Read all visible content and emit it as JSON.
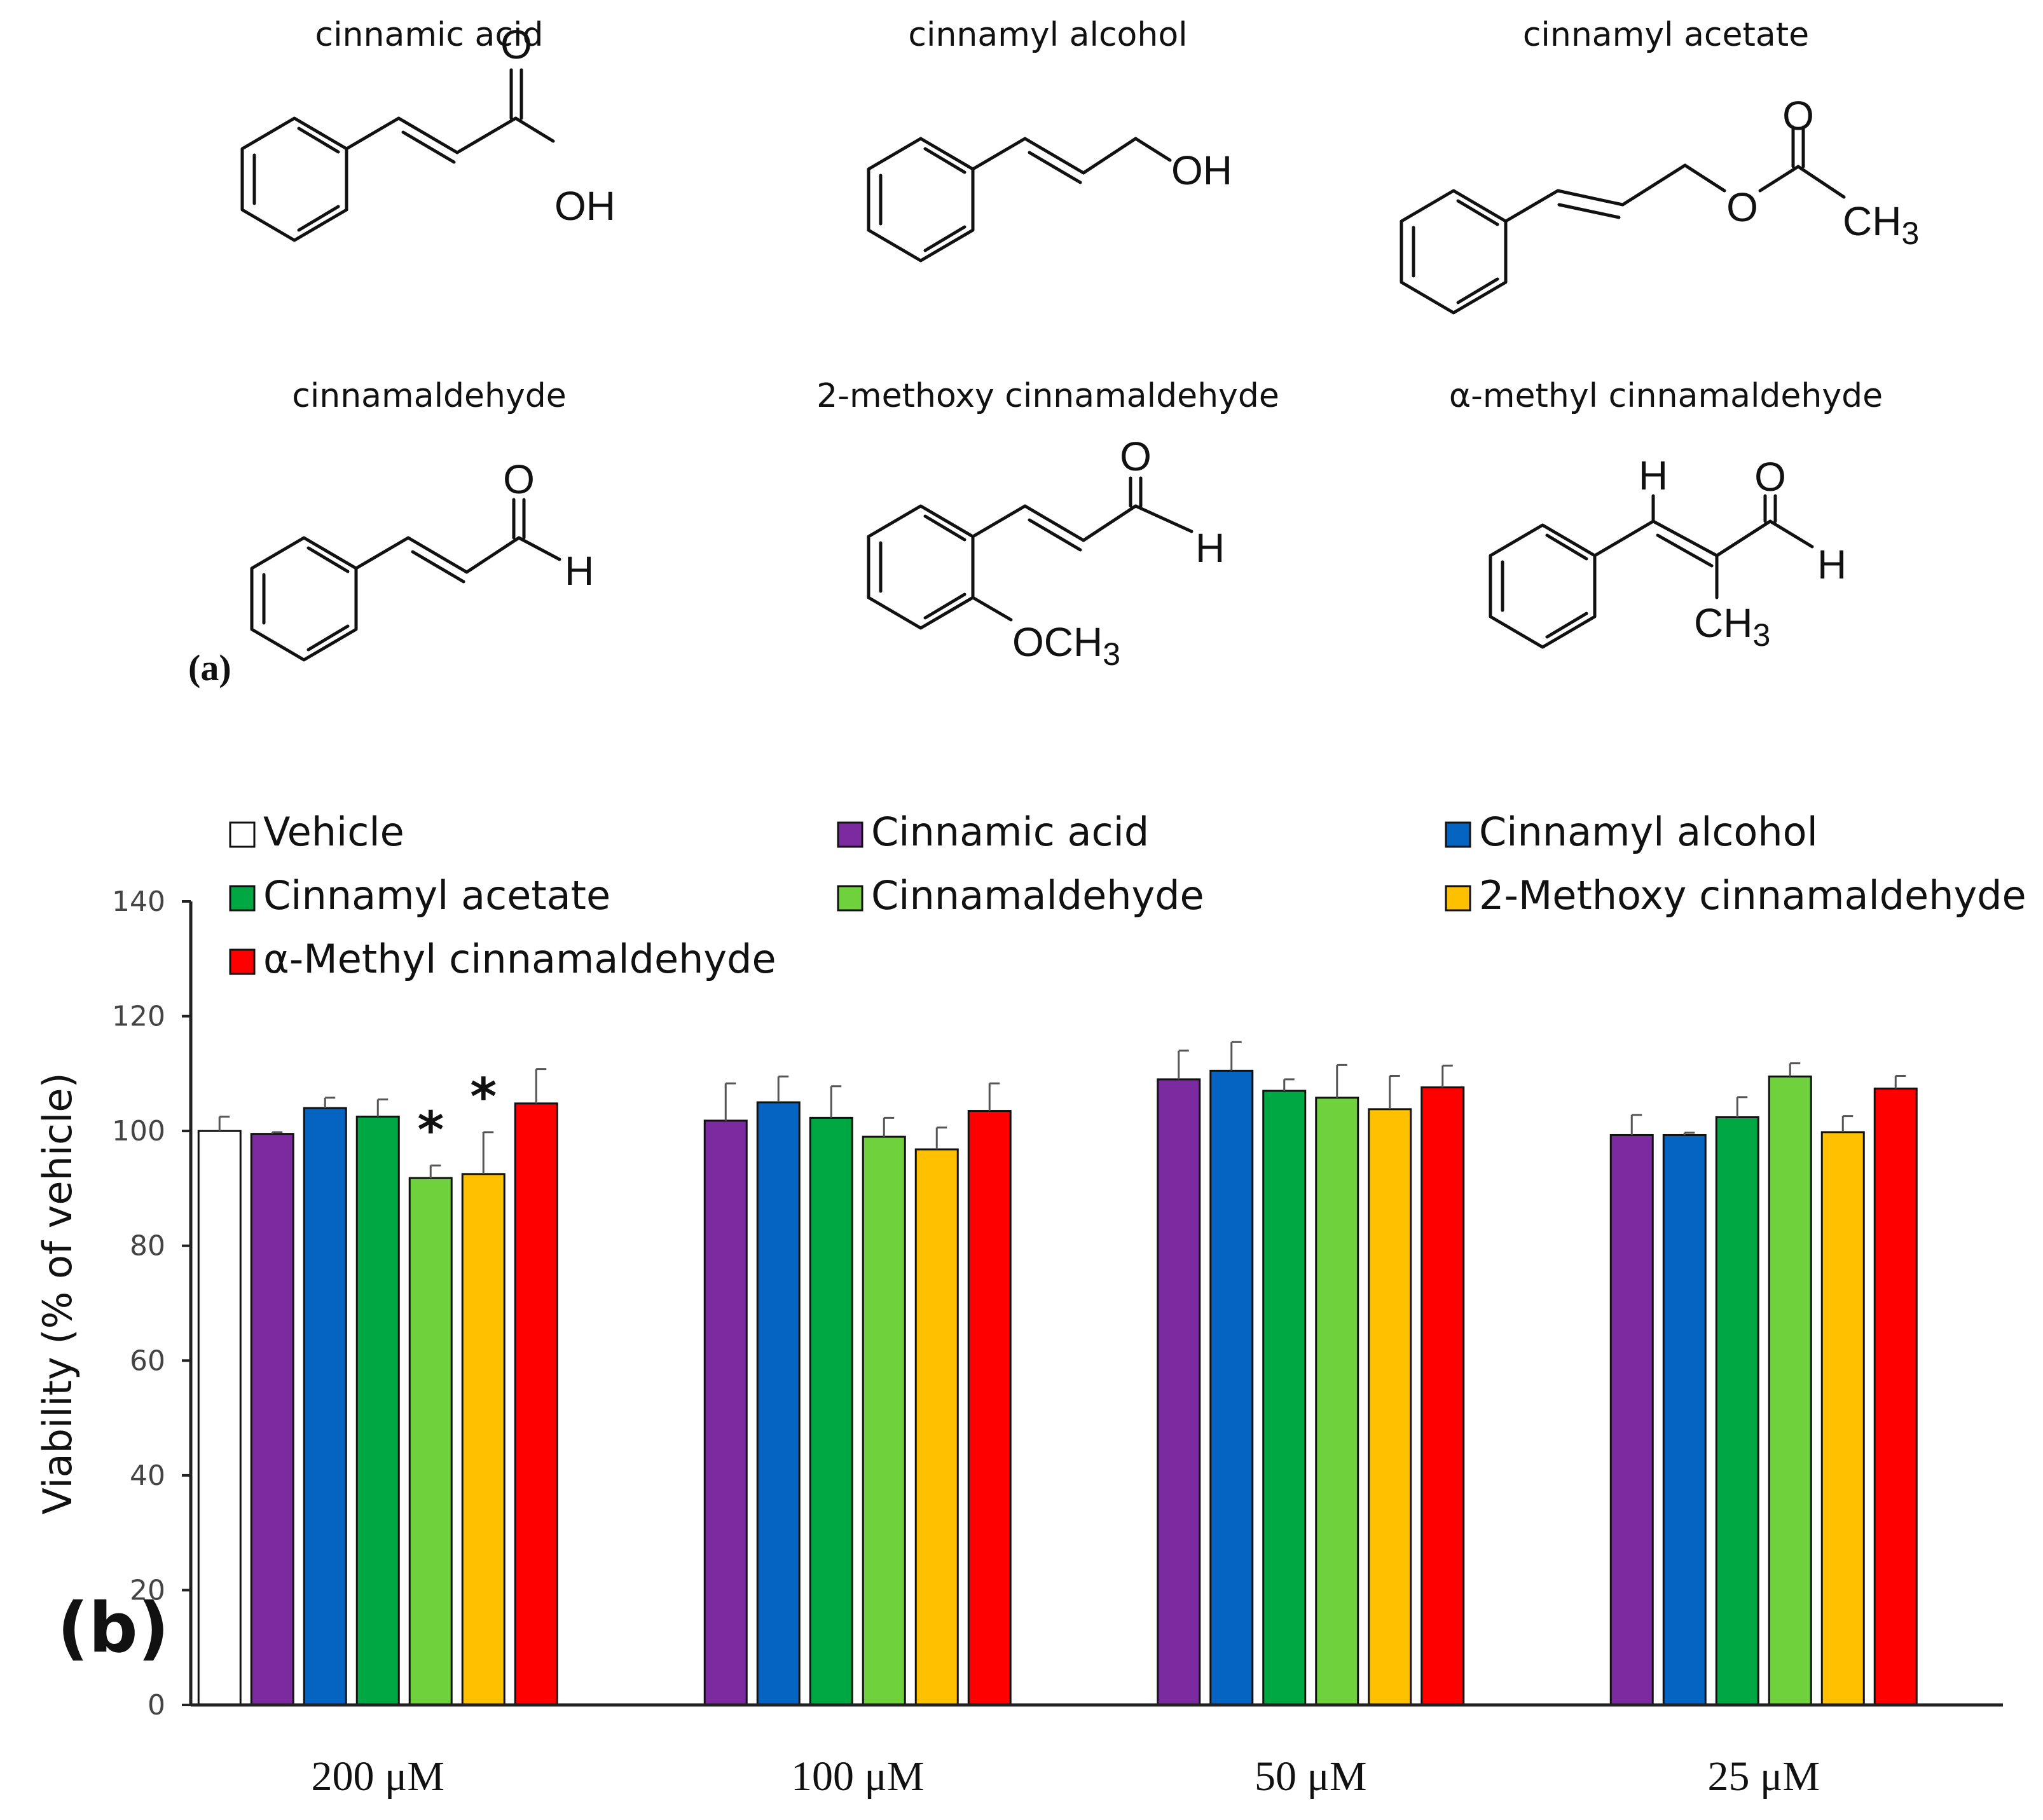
{
  "panel_a": {
    "label": "(a)",
    "compounds": [
      {
        "name": "cinnamic acid",
        "groups": [
          "O",
          "OH"
        ]
      },
      {
        "name": "cinnamyl alcohol",
        "groups": [
          "OH"
        ]
      },
      {
        "name": "cinnamyl acetate",
        "groups": [
          "O",
          "O",
          "CH3"
        ]
      },
      {
        "name": "cinnamaldehyde",
        "groups": [
          "O",
          "H"
        ]
      },
      {
        "name": "2-methoxy cinnamaldehyde",
        "groups": [
          "O",
          "H",
          "OCH3"
        ]
      },
      {
        "name": "α-methyl cinnamaldehyde",
        "groups": [
          "H",
          "O",
          "H",
          "CH3"
        ]
      }
    ]
  },
  "chart_data": {
    "type": "bar",
    "panel_label": "(b)",
    "title": "",
    "xlabel": "",
    "ylabel": "Viability (% of vehicle)",
    "ylim": [
      0,
      140
    ],
    "yticks": [
      0,
      20,
      40,
      60,
      80,
      100,
      120,
      140
    ],
    "categories": [
      "200 μM",
      "100 μM",
      "50 μM",
      "25 μM"
    ],
    "legend_position": "top",
    "series": [
      {
        "name": "Vehicle",
        "color": "#ffffff",
        "values": [
          100,
          null,
          null,
          null
        ],
        "errors": [
          2.5,
          null,
          null,
          null
        ]
      },
      {
        "name": "Cinnamic acid",
        "color": "#7b2b9f",
        "values": [
          99.5,
          101.8,
          109,
          99.3
        ],
        "errors": [
          0.3,
          6.5,
          5,
          3.5
        ]
      },
      {
        "name": "Cinnamyl alcohol",
        "color": "#0563c1",
        "values": [
          104,
          105,
          110.5,
          99.3
        ],
        "errors": [
          1.8,
          4.5,
          5,
          0.4
        ]
      },
      {
        "name": "Cinnamyl acetate",
        "color": "#00a844",
        "values": [
          102.5,
          102.3,
          107,
          102.4
        ],
        "errors": [
          3,
          5.5,
          2,
          3.5
        ]
      },
      {
        "name": "Cinnamaldehyde",
        "color": "#6fd13c",
        "values": [
          91.8,
          99,
          105.8,
          109.5
        ],
        "errors": [
          2.2,
          3.3,
          5.7,
          2.3
        ]
      },
      {
        "name": "2-Methoxy cinnamaldehyde",
        "color": "#ffc000",
        "values": [
          92.5,
          96.8,
          103.8,
          99.8
        ],
        "errors": [
          7.3,
          3.8,
          5.8,
          2.8
        ]
      },
      {
        "name": "α-Methyl cinnamaldehyde",
        "color": "#ff0000",
        "values": [
          104.8,
          103.5,
          107.6,
          107.4
        ],
        "errors": [
          6,
          4.8,
          3.8,
          2.2
        ]
      }
    ],
    "annotations": [
      {
        "text": "*",
        "category": "200 μM",
        "series": "Cinnamaldehyde"
      },
      {
        "text": "*",
        "category": "200 μM",
        "series": "2-Methoxy cinnamaldehyde"
      }
    ]
  }
}
